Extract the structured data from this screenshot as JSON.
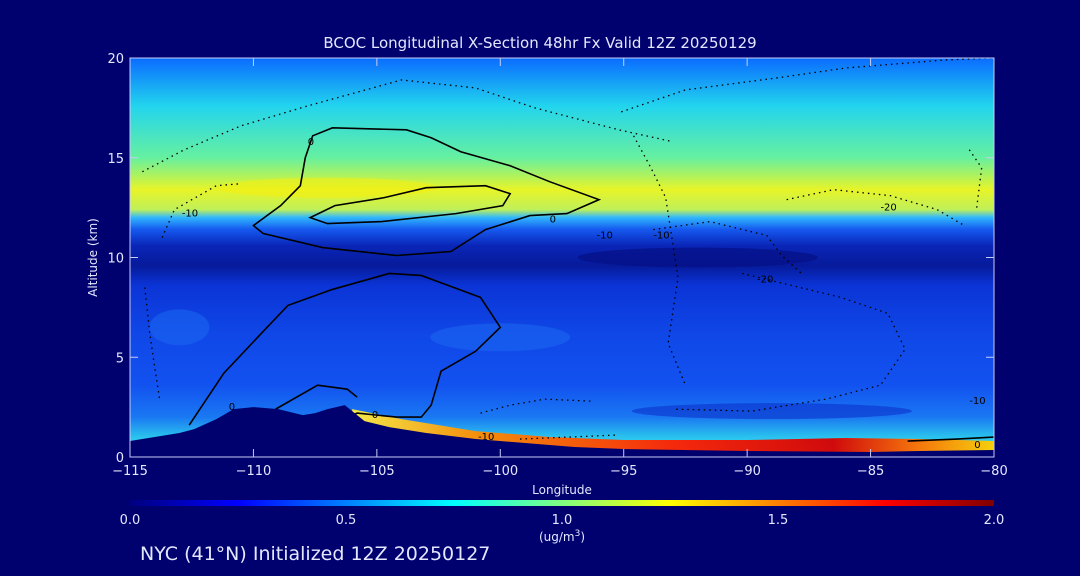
{
  "chart_data": {
    "type": "heatmap",
    "title": "BCOC Longitudinal X-Section 48hr  Fx Valid 12Z 20250129",
    "xlabel": "Longitude",
    "ylabel": "Altitude (km)",
    "xlim": [
      -115,
      -80
    ],
    "ylim": [
      0,
      20
    ],
    "x_ticks": [
      -115,
      -110,
      -105,
      -100,
      -95,
      -90,
      -85,
      -80
    ],
    "y_ticks": [
      0,
      5,
      10,
      15,
      20
    ],
    "colorbar": {
      "min": 0.0,
      "max": 2.0,
      "ticks": [
        "0.0",
        "0.5",
        "1.0",
        "1.5",
        "2.0"
      ],
      "unit_label": "(ug/m",
      "unit_sup": "3",
      "unit_close": ")",
      "colors": [
        "#00007f",
        "#0000ff",
        "#0080ff",
        "#00ffff",
        "#80ff80",
        "#ffff00",
        "#ff8000",
        "#ff0000",
        "#7f0000"
      ]
    },
    "contour_labels": [
      "0",
      "0",
      "-10",
      "0",
      "0",
      "-10",
      "-10",
      "-20",
      "-20",
      "-10",
      "-10",
      "0"
    ],
    "terrain": {
      "lon": [
        -115,
        -113,
        -112.4,
        -111.5,
        -110.8,
        -110,
        -109,
        -108,
        -107.5,
        -107,
        -106.3,
        -105.9,
        -105.5,
        -104.5,
        -103,
        -101,
        -99,
        -97,
        -95,
        -90,
        -85,
        -83,
        -80
      ],
      "alt": [
        0.8,
        1.2,
        1.4,
        1.9,
        2.4,
        2.5,
        2.4,
        2.1,
        2.2,
        2.4,
        2.6,
        2.2,
        1.8,
        1.5,
        1.2,
        0.9,
        0.7,
        0.5,
        0.4,
        0.3,
        0.25,
        0.3,
        0.35
      ]
    }
  },
  "footer": "NYC (41°N) Initialized 12Z 20250127"
}
